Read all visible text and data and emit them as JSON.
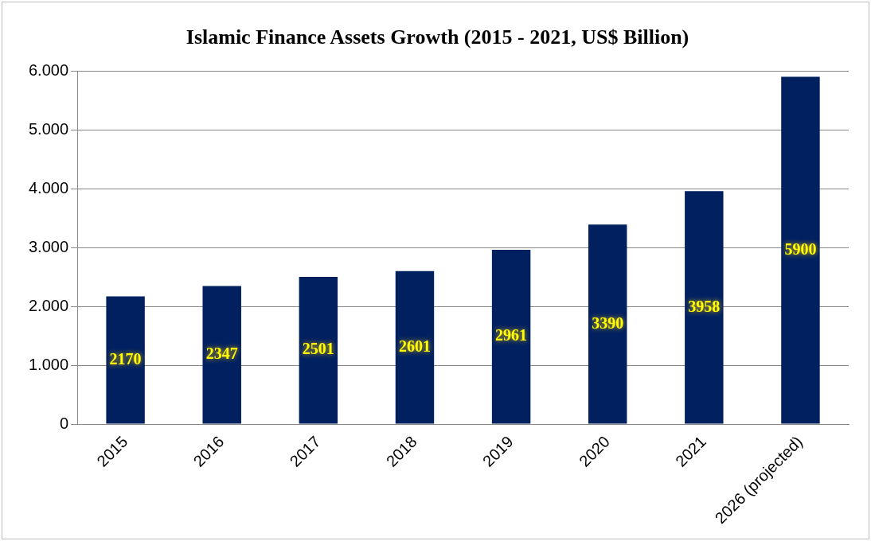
{
  "chart_data": {
    "type": "bar",
    "title": "Islamic Finance Assets Growth (2015 - 2021, US$ Billion)",
    "categories": [
      "2015",
      "2016",
      "2017",
      "2018",
      "2019",
      "2020",
      "2021",
      "2026 (projected)"
    ],
    "values": [
      2170,
      2347,
      2501,
      2601,
      2961,
      3390,
      3958,
      5900
    ],
    "color": "#002060",
    "ylim": [
      0,
      6000
    ],
    "yticks": [
      0,
      {
        "value": 1000,
        "label": "1.000"
      },
      {
        "value": 2000,
        "label": "2.000"
      },
      {
        "value": 3000,
        "label": "3.000"
      },
      {
        "value": 4000,
        "label": "4.000"
      },
      {
        "value": 5000,
        "label": "5.000"
      },
      {
        "value": 6000,
        "label": "6.000"
      }
    ],
    "grid": "y",
    "legend": false,
    "data_labels": true
  }
}
